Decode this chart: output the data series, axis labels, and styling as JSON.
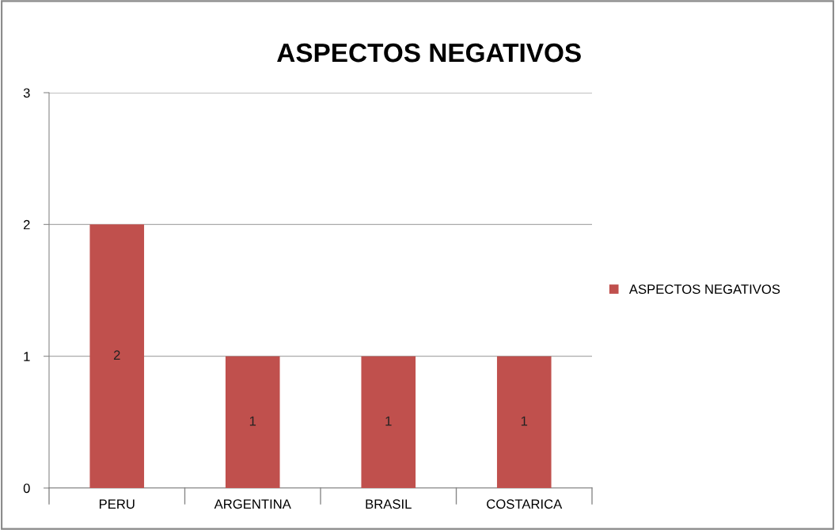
{
  "chart_data": {
    "type": "bar",
    "title": "ASPECTOS NEGATIVOS",
    "categories": [
      "PERU",
      "ARGENTINA",
      "BRASIL",
      "COSTARICA"
    ],
    "series": [
      {
        "name": "ASPECTOS NEGATIVOS",
        "color": "#c0504d",
        "values": [
          2,
          1,
          1,
          1
        ]
      }
    ],
    "ylim": [
      0,
      3
    ],
    "yticks": [
      0,
      1,
      2,
      3
    ],
    "grid": "y",
    "legend": "right",
    "data_labels": true
  }
}
